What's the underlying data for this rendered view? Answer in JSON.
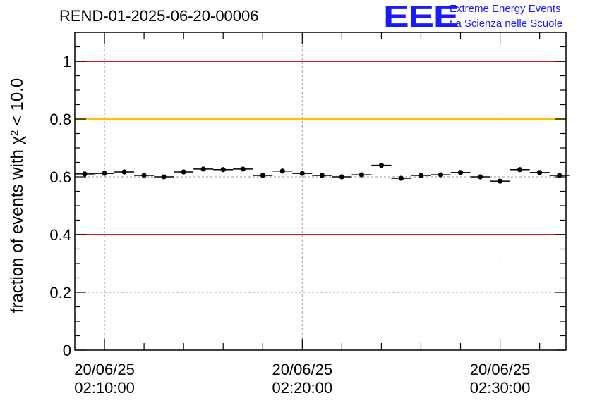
{
  "chart_data": {
    "type": "scatter",
    "title": "REND-01-2025-06-20-00006",
    "ylabel": "fraction of events with χ² < 10.0",
    "xlabel": "",
    "ylim": [
      0,
      1.1
    ],
    "xlim": [
      0,
      1490
    ],
    "y_ticks": [
      0,
      0.2,
      0.4,
      0.6,
      0.8,
      1
    ],
    "y_tick_labels": [
      "0",
      "0.2",
      "0.4",
      "0.6",
      "0.8",
      "1"
    ],
    "x_ticks": [
      90,
      690,
      1290
    ],
    "x_tick_labels": [
      {
        "date": "20/06/25",
        "time": "02:10:00"
      },
      {
        "date": "20/06/25",
        "time": "02:20:00"
      },
      {
        "date": "20/06/25",
        "time": "02:30:00"
      }
    ],
    "x_minor_step": 120,
    "grid": true,
    "bin_halfwidth": 30,
    "points": [
      {
        "x": 30,
        "y": 0.61
      },
      {
        "x": 90,
        "y": 0.612
      },
      {
        "x": 150,
        "y": 0.617
      },
      {
        "x": 210,
        "y": 0.605
      },
      {
        "x": 270,
        "y": 0.6
      },
      {
        "x": 330,
        "y": 0.617
      },
      {
        "x": 390,
        "y": 0.627
      },
      {
        "x": 450,
        "y": 0.625
      },
      {
        "x": 510,
        "y": 0.627
      },
      {
        "x": 570,
        "y": 0.605
      },
      {
        "x": 630,
        "y": 0.62
      },
      {
        "x": 690,
        "y": 0.612
      },
      {
        "x": 750,
        "y": 0.605
      },
      {
        "x": 810,
        "y": 0.6
      },
      {
        "x": 870,
        "y": 0.607
      },
      {
        "x": 930,
        "y": 0.64
      },
      {
        "x": 990,
        "y": 0.595
      },
      {
        "x": 1050,
        "y": 0.605
      },
      {
        "x": 1110,
        "y": 0.607
      },
      {
        "x": 1170,
        "y": 0.615
      },
      {
        "x": 1230,
        "y": 0.6
      },
      {
        "x": 1290,
        "y": 0.585
      },
      {
        "x": 1350,
        "y": 0.625
      },
      {
        "x": 1410,
        "y": 0.615
      },
      {
        "x": 1470,
        "y": 0.605
      }
    ],
    "reference_lines": [
      {
        "y": 1.0,
        "color": "#e8141b"
      },
      {
        "y": 0.8,
        "color": "#ffc400"
      },
      {
        "y": 0.4,
        "color": "#e8141b"
      }
    ]
  },
  "logo": {
    "mark": "EEE",
    "line1": "Extreme Energy Events",
    "line2": "La Scienza nelle Scuole",
    "color": "#1a1aff"
  }
}
